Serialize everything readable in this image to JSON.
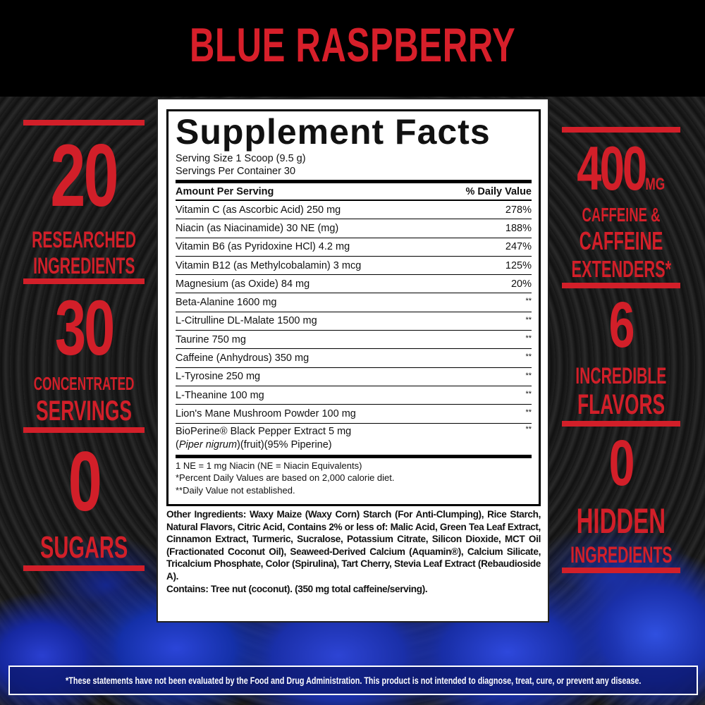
{
  "heading": "BLUE RASPBERRY",
  "colors": {
    "accent_red": "#d21f29",
    "background": "#000000",
    "berry_blue": "#1a30aa"
  },
  "left_stats": [
    {
      "number": "20",
      "line1": "RESEARCHED",
      "line2": "INGREDIENTS"
    },
    {
      "number": "30",
      "line1": "CONCENTRATED",
      "line2": "SERVINGS"
    },
    {
      "number": "0",
      "line1": "SUGARS"
    }
  ],
  "right_stats": [
    {
      "number": "400",
      "unit": "MG",
      "line1": "CAFFEINE &",
      "line2": "CAFFEINE",
      "line3": "EXTENDERS*"
    },
    {
      "number": "6",
      "line1": "INCREDIBLE",
      "line2": "FLAVORS"
    },
    {
      "number": "0",
      "line1": "HIDDEN",
      "line2": "INGREDIENTS"
    }
  ],
  "facts": {
    "title": "Supplement Facts",
    "serving_size": "Serving Size 1 Scoop (9.5 g)",
    "servings_per_container": "Servings Per Container 30",
    "header_amount": "Amount Per Serving",
    "header_dv": "% Daily Value",
    "rows": [
      {
        "name": "Vitamin C (as Ascorbic Acid) 250 mg",
        "dv": "278%"
      },
      {
        "name": "Niacin (as Niacinamide) 30 NE (mg)",
        "dv": "188%"
      },
      {
        "name": "Vitamin B6 (as Pyridoxine HCl) 4.2 mg",
        "dv": "247%"
      },
      {
        "name": "Vitamin B12 (as Methylcobalamin) 3 mcg",
        "dv": "125%"
      },
      {
        "name": "Magnesium (as Oxide) 84 mg",
        "dv": "20%"
      },
      {
        "name": "Beta-Alanine 1600 mg",
        "dv": "**"
      },
      {
        "name": "L-Citrulline DL-Malate 1500 mg",
        "dv": "**"
      },
      {
        "name": "Taurine 750 mg",
        "dv": "**"
      },
      {
        "name": "Caffeine (Anhydrous) 350 mg",
        "dv": "**"
      },
      {
        "name": "L-Tyrosine 250 mg",
        "dv": "**"
      },
      {
        "name": "L-Theanine 100 mg",
        "dv": "**"
      },
      {
        "name": "Lion's Mane Mushroom Powder 100 mg",
        "dv": "**"
      }
    ],
    "bioperine": {
      "name": "BioPerine® Black Pepper Extract 5 mg",
      "latin": "Piper nigrum",
      "detail": "(fruit)(95% Piperine)",
      "dv": "**"
    },
    "footnotes": [
      "1 NE = 1 mg Niacin (NE = Niacin Equivalents)",
      "*Percent Daily Values are based on 2,000 calorie diet.",
      "**Daily Value not established."
    ]
  },
  "other_ingredients": "Other Ingredients: Waxy Maize (Waxy Corn) Starch (For Anti-Clumping), Rice Starch, Natural Flavors, Citric Acid, Contains 2% or less of: Malic Acid, Green Tea Leaf Extract, Cinnamon Extract, Turmeric, Sucralose, Potassium Citrate, Silicon Dioxide, MCT Oil (Fractionated Coconut Oil), Seaweed-Derived Calcium (Aquamin®), Calcium Silicate, Tricalcium Phosphate, Color (Spirulina), Tart Cherry, Stevia Leaf Extract (Rebaudioside A).",
  "contains": "Contains: Tree nut (coconut). (350 mg total caffeine/serving).",
  "disclaimer": "*These statements have not been evaluated by the Food and Drug Administration. This product is not intended to diagnose, treat, cure, or prevent any disease."
}
